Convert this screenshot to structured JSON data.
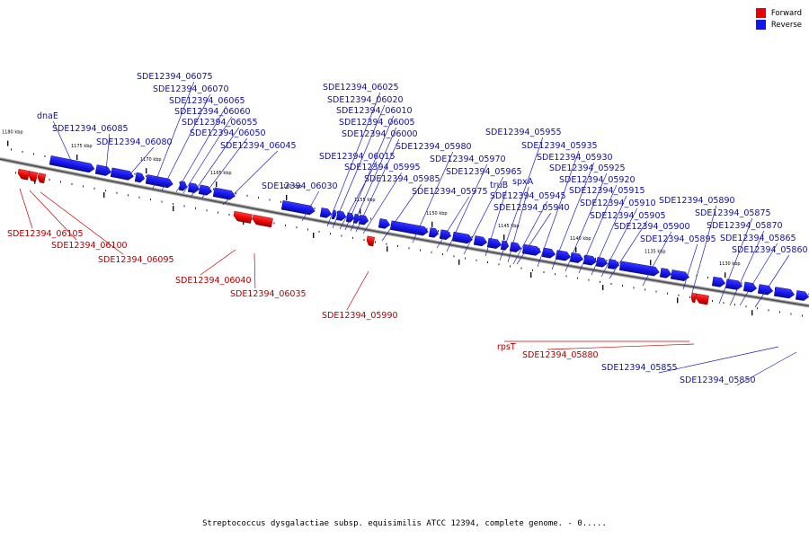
{
  "caption": "Streptococcus dysgalactiae subsp. equisimilis ATCC 12394, complete genome. - 0.....",
  "legend": [
    {
      "label": "Forward",
      "color": "#ee0000"
    },
    {
      "label": "Reverse",
      "color": "#1414ee"
    }
  ],
  "colors": {
    "forward": "#ee0000",
    "reverse": "#1414ee",
    "backbone": "#808080"
  },
  "ticks": [
    "1180 kbp",
    "1175 kbp",
    "1170 kbp",
    "1165 kbp",
    "1160 kbp",
    "1155 kbp",
    "1150 kbp",
    "1145 kbp",
    "1140 kbp",
    "1135 kbp",
    "1130 kbp"
  ],
  "genes": [
    {
      "label": "SDE12394_06105",
      "strand": "forward"
    },
    {
      "label": "SDE12394_06100",
      "strand": "forward"
    },
    {
      "label": "SDE12394_06095",
      "strand": "forward"
    },
    {
      "label": "dnaE",
      "strand": "reverse"
    },
    {
      "label": "SDE12394_06085",
      "strand": "reverse"
    },
    {
      "label": "SDE12394_06080",
      "strand": "reverse"
    },
    {
      "label": "SDE12394_06075",
      "strand": "reverse"
    },
    {
      "label": "SDE12394_06070",
      "strand": "reverse"
    },
    {
      "label": "SDE12394_06065",
      "strand": "reverse"
    },
    {
      "label": "SDE12394_06060",
      "strand": "reverse"
    },
    {
      "label": "SDE12394_06055",
      "strand": "reverse"
    },
    {
      "label": "SDE12394_06050",
      "strand": "reverse"
    },
    {
      "label": "SDE12394_06045",
      "strand": "reverse"
    },
    {
      "label": "SDE12394_06040",
      "strand": "forward"
    },
    {
      "label": "SDE12394_06035",
      "strand": "forward"
    },
    {
      "label": "SDE12394_06030",
      "strand": "reverse"
    },
    {
      "label": "SDE12394_06025",
      "strand": "reverse"
    },
    {
      "label": "SDE12394_06020",
      "strand": "reverse"
    },
    {
      "label": "SDE12394_06015",
      "strand": "reverse"
    },
    {
      "label": "SDE12394_06010",
      "strand": "reverse"
    },
    {
      "label": "SDE12394_06005",
      "strand": "reverse"
    },
    {
      "label": "SDE12394_06000",
      "strand": "reverse"
    },
    {
      "label": "SDE12394_05995",
      "strand": "reverse"
    },
    {
      "label": "SDE12394_05990",
      "strand": "forward"
    },
    {
      "label": "SDE12394_05985",
      "strand": "reverse"
    },
    {
      "label": "SDE12394_05980",
      "strand": "reverse"
    },
    {
      "label": "SDE12394_05975",
      "strand": "reverse"
    },
    {
      "label": "SDE12394_05970",
      "strand": "reverse"
    },
    {
      "label": "SDE12394_05965",
      "strand": "reverse"
    },
    {
      "label": "truB",
      "strand": "reverse"
    },
    {
      "label": "SDE12394_05955",
      "strand": "reverse"
    },
    {
      "label": "spxA",
      "strand": "reverse"
    },
    {
      "label": "SDE12394_05945",
      "strand": "reverse"
    },
    {
      "label": "SDE12394_05940",
      "strand": "reverse"
    },
    {
      "label": "SDE12394_05935",
      "strand": "reverse"
    },
    {
      "label": "SDE12394_05930",
      "strand": "reverse"
    },
    {
      "label": "SDE12394_05925",
      "strand": "reverse"
    },
    {
      "label": "SDE12394_05920",
      "strand": "reverse"
    },
    {
      "label": "SDE12394_05915",
      "strand": "reverse"
    },
    {
      "label": "SDE12394_05910",
      "strand": "reverse"
    },
    {
      "label": "SDE12394_05905",
      "strand": "reverse"
    },
    {
      "label": "SDE12394_05900",
      "strand": "reverse"
    },
    {
      "label": "SDE12394_05895",
      "strand": "reverse"
    },
    {
      "label": "SDE12394_05890",
      "strand": "reverse"
    },
    {
      "label": "SDE12394_05875",
      "strand": "reverse"
    },
    {
      "label": "SDE12394_05870",
      "strand": "reverse"
    },
    {
      "label": "SDE12394_05865",
      "strand": "reverse"
    },
    {
      "label": "SDE12394_05860",
      "strand": "reverse"
    },
    {
      "label": "rpsT",
      "strand": "forward"
    },
    {
      "label": "SDE12394_05880",
      "strand": "forward"
    },
    {
      "label": "SDE12394_05855",
      "strand": "reverse"
    },
    {
      "label": "SDE12394_05850",
      "strand": "reverse"
    }
  ]
}
